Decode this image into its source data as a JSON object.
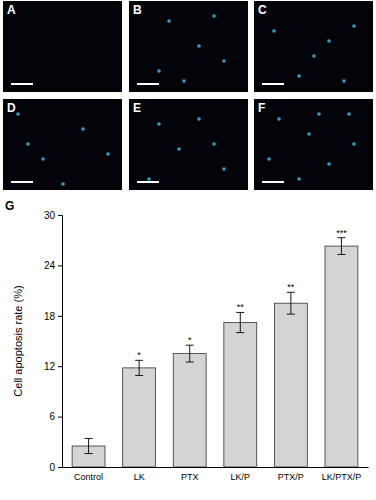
{
  "panels": [
    "A",
    "B",
    "C",
    "D",
    "E",
    "F",
    "G"
  ],
  "chart_data": {
    "type": "bar",
    "y_label": "Cell apoptosis rate (%)",
    "categories": [
      "Control",
      "LK",
      "PTX",
      "LK/P",
      "PTX/P",
      "LK/PTX/P"
    ],
    "values": [
      2.5,
      11.8,
      13.5,
      17.2,
      19.5,
      26.3
    ],
    "errors": [
      0.9,
      0.9,
      1.0,
      1.2,
      1.3,
      1.0
    ],
    "significance": [
      "",
      "*",
      "*",
      "**",
      "**",
      "***"
    ],
    "color": "#d4d4d4",
    "ylim": [
      0,
      30
    ],
    "yticks": [
      0,
      6,
      12,
      18,
      24,
      30
    ],
    "grid": false
  }
}
